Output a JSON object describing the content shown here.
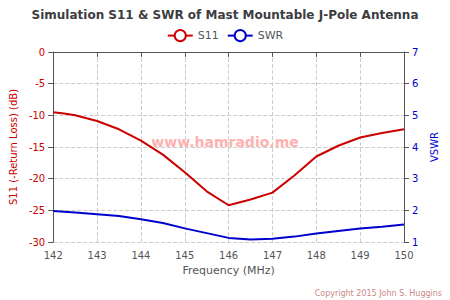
{
  "chart_data": {
    "type": "line",
    "title": "Simulation S11 & SWR of Mast Mountable J-Pole Antenna",
    "xlabel": "Frequency (MHz)",
    "ylabel": "S11 (-Return Loss) (dB)",
    "y2label": "VSWR",
    "xlim": [
      142,
      150
    ],
    "xticks": [
      142,
      143,
      144,
      145,
      146,
      147,
      148,
      149,
      150
    ],
    "ylim": [
      -30,
      0
    ],
    "yticks": [
      -30,
      -25,
      -20,
      -15,
      -10,
      -5,
      0
    ],
    "y2lim": [
      1,
      7
    ],
    "y2ticks": [
      1,
      2,
      3,
      4,
      5,
      6,
      7
    ],
    "grid": true,
    "legend": "upper center",
    "series": [
      {
        "name": "S11",
        "color": "#cc0000",
        "x": [
          142,
          142.25,
          142.5,
          143,
          143.5,
          144,
          144.5,
          145,
          145.5,
          146,
          146.5,
          147,
          147.5,
          148,
          148.5,
          149,
          149.5,
          150
        ],
        "values": [
          -9.5,
          -9.7,
          -10.0,
          -10.9,
          -12.2,
          -14.0,
          -16.2,
          -19.0,
          -22.0,
          -24.2,
          -23.3,
          -22.2,
          -19.5,
          -16.5,
          -14.8,
          -13.5,
          -12.8,
          -12.2
        ]
      },
      {
        "name": "SWR",
        "color": "#0000cc",
        "axis": "y2",
        "x": [
          142,
          142.5,
          143,
          143.5,
          144,
          144.5,
          145,
          145.5,
          146,
          146.5,
          147,
          147.5,
          148,
          148.5,
          149,
          149.5,
          150
        ],
        "values": [
          1.98,
          1.93,
          1.88,
          1.82,
          1.72,
          1.6,
          1.43,
          1.28,
          1.13,
          1.08,
          1.1,
          1.17,
          1.27,
          1.35,
          1.43,
          1.48,
          1.55
        ]
      }
    ],
    "annotations": [
      {
        "text": "www.hamradio.me",
        "color": "#ffb0b0"
      },
      {
        "text": "Copyright 2015 John S. Huggins",
        "color": "#cc8888"
      }
    ]
  }
}
